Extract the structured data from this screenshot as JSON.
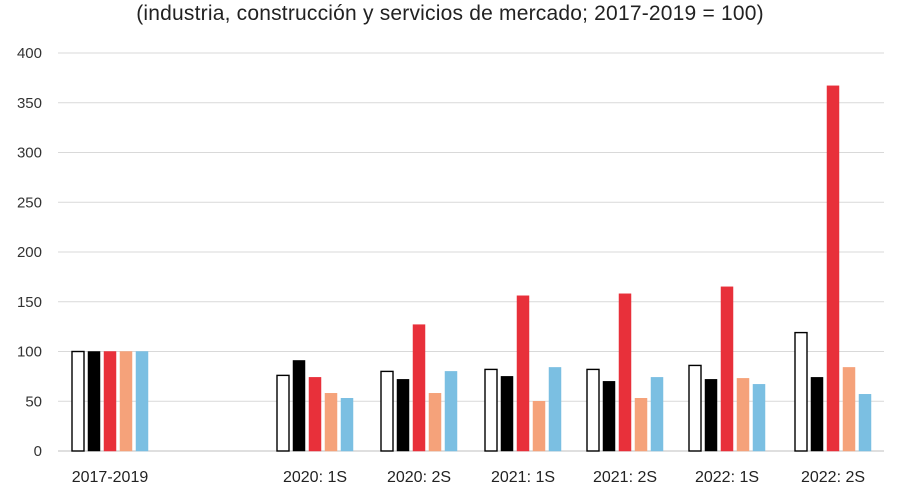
{
  "chart_data": {
    "type": "bar",
    "title": "",
    "subtitle": "(industria, construcción y servicios de mercado; 2017-2019 = 100)",
    "xlabel": "",
    "ylabel": "",
    "ylim": [
      0,
      400
    ],
    "yticks": [
      0,
      50,
      100,
      150,
      200,
      250,
      300,
      350,
      400
    ],
    "grid": true,
    "legend": "none",
    "categories": [
      "2017-2019",
      "2020: 1S",
      "2020: 2S",
      "2021: 1S",
      "2021: 2S",
      "2022: 1S",
      "2022: 2S"
    ],
    "series": [
      {
        "color": "#ffffff",
        "stroke": "#000000",
        "values": [
          100,
          76,
          80,
          82,
          82,
          86,
          119
        ]
      },
      {
        "color": "#000000",
        "stroke": "#000000",
        "values": [
          100,
          91,
          72,
          75,
          70,
          72,
          74
        ]
      },
      {
        "color": "#e8303a",
        "stroke": "#e8303a",
        "values": [
          100,
          74,
          127,
          156,
          158,
          165,
          367
        ]
      },
      {
        "color": "#f5a27a",
        "stroke": "#f5a27a",
        "values": [
          100,
          58,
          58,
          50,
          53,
          73,
          84
        ]
      },
      {
        "color": "#7bbfe2",
        "stroke": "#7bbfe2",
        "values": [
          100,
          53,
          80,
          84,
          74,
          67,
          57
        ]
      }
    ]
  }
}
